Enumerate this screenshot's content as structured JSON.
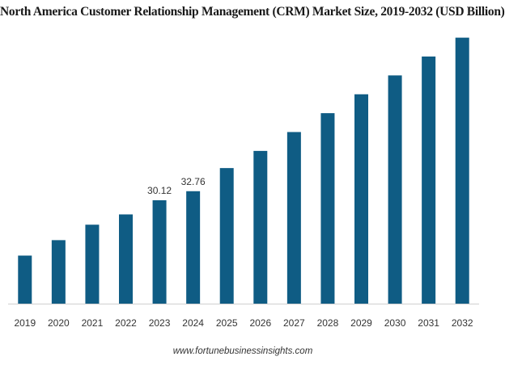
{
  "chart_data": {
    "type": "bar",
    "title": "North America Customer Relationship Management (CRM) Market Size, 2019-2032 (USD Billion)",
    "categories": [
      "2019",
      "2020",
      "2021",
      "2022",
      "2023",
      "2024",
      "2025",
      "2026",
      "2027",
      "2028",
      "2029",
      "2030",
      "2031",
      "2032"
    ],
    "values": [
      14.0,
      18.5,
      23.0,
      26.0,
      30.12,
      32.76,
      39.5,
      44.5,
      50.0,
      55.5,
      61.0,
      66.5,
      72.0,
      77.5
    ],
    "data_labels": [
      {
        "index": 4,
        "text": "30.12"
      },
      {
        "index": 5,
        "text": "32.76"
      }
    ],
    "xlabel": "",
    "ylabel": "",
    "ylim": [
      0,
      80
    ],
    "grid": false,
    "legend": "none",
    "bar_color": "#0f5c84",
    "axis_color": "#cfcfcf"
  },
  "source": "www.fortunebusinessinsights.com"
}
